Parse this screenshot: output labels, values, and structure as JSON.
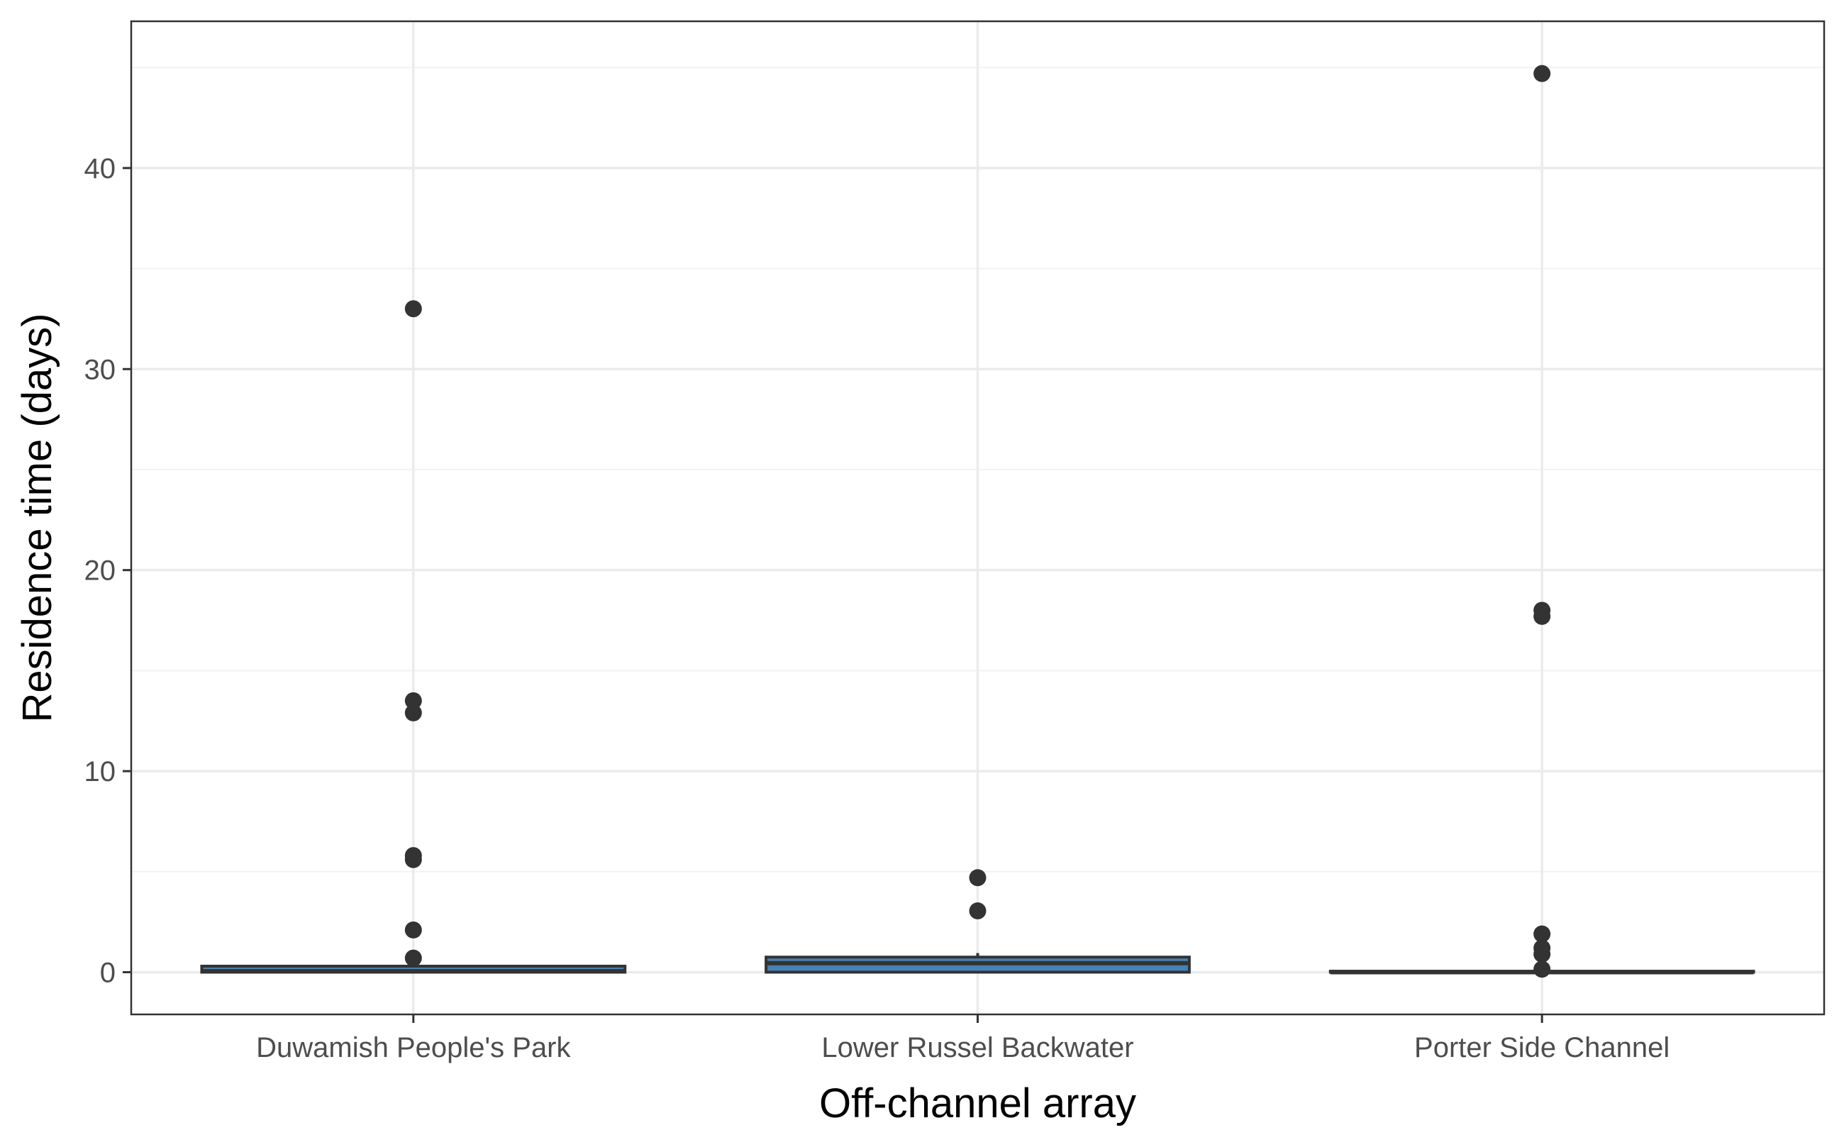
{
  "chart_data": {
    "type": "box",
    "xlabel": "Off-channel array",
    "ylabel": "Residence time (days)",
    "ylim": [
      -2.1,
      47.3
    ],
    "yticks": [
      0,
      10,
      20,
      30,
      40
    ],
    "grid": true,
    "colors": {
      "box_fill": "#4682b4",
      "box_outline": "#333333",
      "outlier": "#333333",
      "grid_major": "#ebebeb",
      "grid_minor": "#f2f2f2",
      "panel_border": "#333333"
    },
    "categories": [
      "Duwamish People's Park",
      "Lower Russel Backwater",
      "Porter Side Channel"
    ],
    "boxes": [
      {
        "category": "Duwamish People's Park",
        "whisker_low": 0.0,
        "q1": 0.0,
        "median": 0.05,
        "q3": 0.3,
        "whisker_high": 0.35,
        "outliers": [
          33.0,
          13.5,
          12.9,
          5.8,
          5.6,
          2.1,
          0.7
        ]
      },
      {
        "category": "Lower Russel Backwater",
        "whisker_low": 0.0,
        "q1": 0.0,
        "median": 0.45,
        "q3": 0.75,
        "whisker_high": 0.95,
        "outliers": [
          4.7,
          3.05
        ]
      },
      {
        "category": "Porter Side Channel",
        "whisker_low": 0.0,
        "q1": 0.0,
        "median": 0.0,
        "q3": 0.05,
        "whisker_high": 0.1,
        "outliers": [
          44.7,
          18.0,
          17.7,
          1.9,
          1.2,
          0.9,
          0.15
        ]
      }
    ]
  }
}
